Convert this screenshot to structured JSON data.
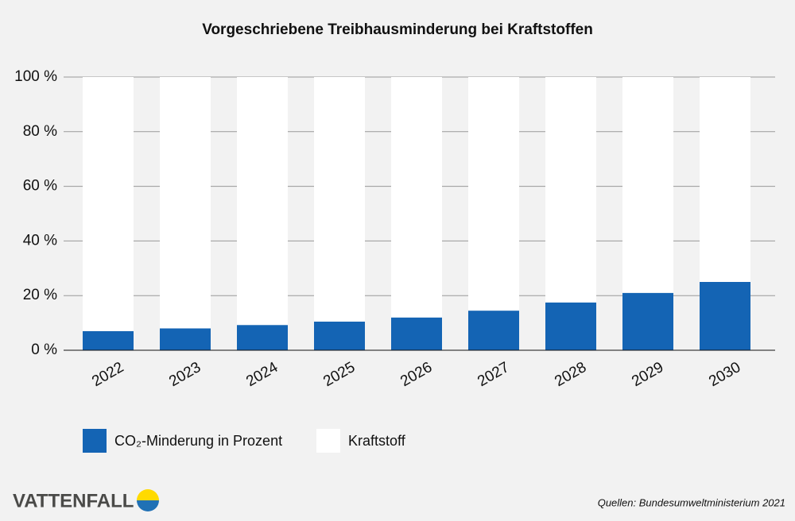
{
  "chart_data": {
    "type": "stacked_bar",
    "title": "Vorgeschriebene Treibhausminderung bei Kraftstoffen",
    "categories": [
      "2022",
      "2023",
      "2024",
      "2025",
      "2026",
      "2027",
      "2028",
      "2029",
      "2030"
    ],
    "series": [
      {
        "name": "CO₂-Minderung in Prozent",
        "color": "#1464b4",
        "values": [
          7,
          8,
          9.25,
          10.5,
          12,
          14.5,
          17.5,
          21,
          25
        ]
      },
      {
        "name": "Kraftstoff",
        "color": "#ffffff",
        "values": [
          93,
          92,
          90.75,
          89.5,
          88,
          85.5,
          82.5,
          79,
          75
        ]
      }
    ],
    "ylim": [
      0,
      100
    ],
    "yticks": [
      {
        "value": 0,
        "label": "0 %"
      },
      {
        "value": 20,
        "label": "20 %"
      },
      {
        "value": 40,
        "label": "40 %"
      },
      {
        "value": 60,
        "label": "60 %"
      },
      {
        "value": 80,
        "label": "80 %"
      },
      {
        "value": 100,
        "label": "100 %"
      }
    ],
    "grid": true,
    "source": "Quellen: Bundesumweltministerium 2021",
    "brand": "VATTENFALL"
  }
}
